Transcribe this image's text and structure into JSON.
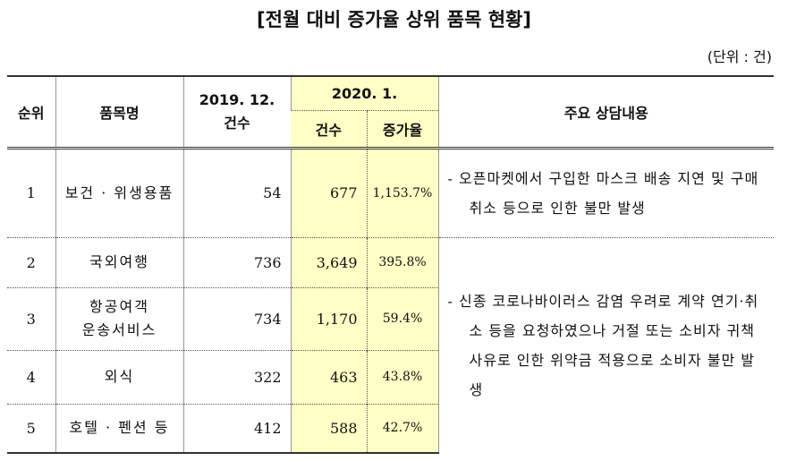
{
  "title": "[전월 대비 증가율 상위 품목 현황]",
  "unit": "(단위 : 건)",
  "table": {
    "header": {
      "rank": "순위",
      "item": "품목명",
      "prev": [
        "2019. 12.",
        "건수"
      ],
      "curr": "2020. 1.",
      "curr_count": "건수",
      "curr_rate": "증가율",
      "content": "주요 상담내용"
    },
    "rows": [
      {
        "rank": "1",
        "item": [
          "보건 · 위생용품"
        ],
        "prev": "54",
        "count": "677",
        "rate": "1,153.7%"
      },
      {
        "rank": "2",
        "item": [
          "국외여행"
        ],
        "prev": "736",
        "count": "3,649",
        "rate": "395.8%"
      },
      {
        "rank": "3",
        "item": [
          "항공여객",
          "운송서비스"
        ],
        "prev": "734",
        "count": "1,170",
        "rate": "59.4%"
      },
      {
        "rank": "4",
        "item": [
          "외식"
        ],
        "prev": "322",
        "count": "463",
        "rate": "43.8%"
      },
      {
        "rank": "5",
        "item": [
          "호텔 · 펜션 등"
        ],
        "prev": "412",
        "count": "588",
        "rate": "42.7%"
      }
    ],
    "notes": [
      "- 오픈마켓에서 구입한 마스크 배송 지연 및 구매 취소 등으로 인한 불만 발생",
      "- 신종 코로나바이러스 감염 우려로 계약 연기·취소 등을 요청하였으나 거절 또는 소비자 귀책사유로 인한 위약금 적용으로 소비자 불만 발생"
    ]
  }
}
